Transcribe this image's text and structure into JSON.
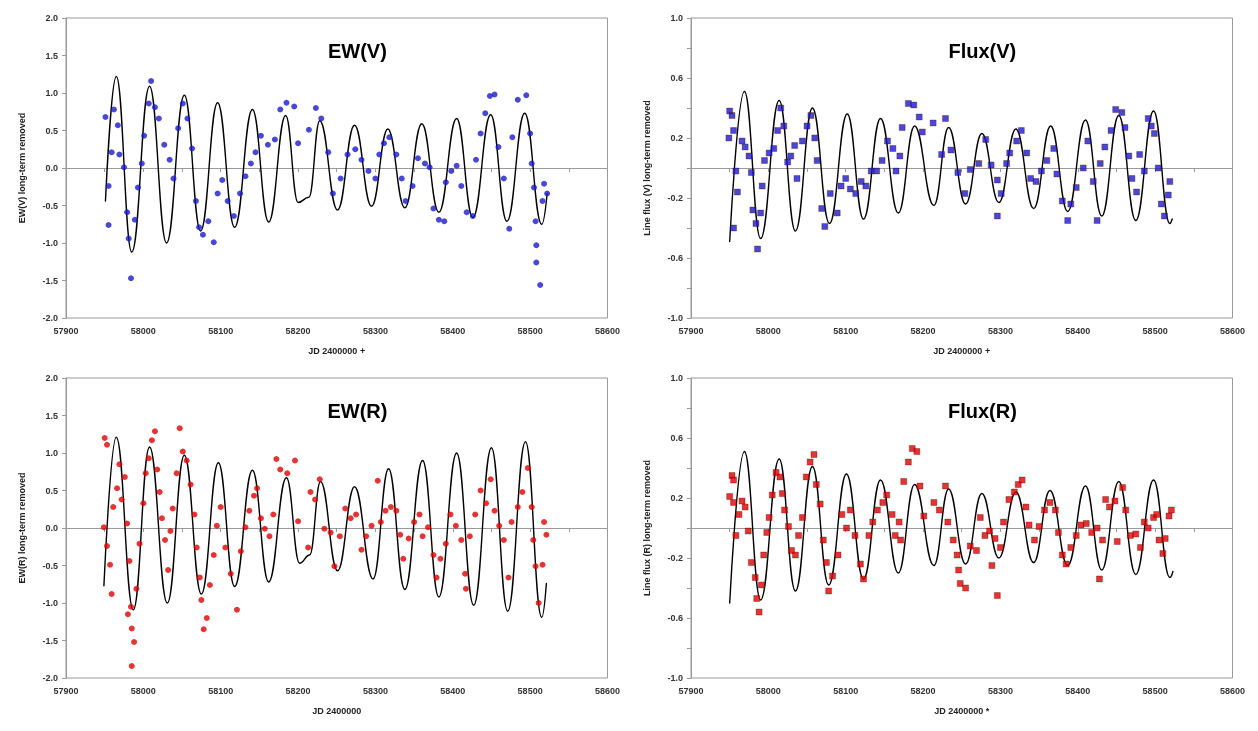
{
  "chart_data": [
    {
      "type": "scatter",
      "title": "EW(V)",
      "xlabel": "JD 2400000 +",
      "ylabel": "EW(V) long-term removed",
      "xlim": [
        57900,
        58600
      ],
      "xticks": [
        57900,
        {
          "value": 57950,
          "label": null
        },
        58000,
        {
          "value": 58050,
          "label": null
        },
        58100,
        {
          "value": 58150,
          "label": null
        },
        58200,
        {
          "value": 58250,
          "label": null
        },
        58300,
        {
          "value": 58350,
          "label": null
        },
        58400,
        {
          "value": 58450,
          "label": null
        },
        58500,
        {
          "value": 58550,
          "label": null
        },
        58600
      ],
      "ylim": [
        -2,
        2
      ],
      "yticks": [
        {
          "value": -2,
          "label": "-2.0"
        },
        -1.5,
        {
          "value": -1,
          "label": "-1.0"
        },
        -0.5,
        {
          "value": 0,
          "label": "0.0"
        },
        0.5,
        {
          "value": 1,
          "label": "1.0"
        },
        1.5,
        {
          "value": 2,
          "label": "2.0"
        }
      ],
      "series": [
        {
          "type": "line",
          "color": "#000000",
          "x": [
            57951,
            57965,
            57985,
            58008,
            58030,
            58053,
            58074,
            58096,
            58118,
            58141,
            58162,
            58184,
            58200,
            58214,
            58228,
            58251,
            58273,
            58295,
            58316,
            58338,
            58360,
            58382,
            58405,
            58426,
            58449,
            58470,
            58493,
            58515,
            58522
          ],
          "values": [
            -0.44,
            1.22,
            -1.12,
            1.09,
            -1.0,
            0.97,
            -0.84,
            0.87,
            -0.79,
            0.78,
            -0.72,
            0.7,
            -0.46,
            -0.39,
            0.63,
            -0.56,
            0.57,
            -0.51,
            0.52,
            -0.53,
            0.59,
            -0.59,
            0.66,
            -0.66,
            0.71,
            -0.71,
            0.73,
            -0.75,
            -0.34
          ]
        },
        {
          "type": "scatter",
          "color": "#1a1acc",
          "marker": "circle",
          "x": [
            57951,
            57955,
            57955,
            57959,
            57962,
            57967,
            57969,
            57975,
            57979,
            57981,
            57984,
            57989,
            57993,
            57998,
            58001,
            58007,
            58010,
            58015,
            58020,
            58027,
            58034,
            58039,
            58045,
            58051,
            58057,
            58063,
            58068,
            58072,
            58077,
            58084,
            58091,
            58096,
            58102,
            58109,
            58117,
            58125,
            58132,
            58139,
            58145,
            58152,
            58161,
            58170,
            58177,
            58185,
            58195,
            58200,
            58214,
            58223,
            58230,
            58239,
            58245,
            58255,
            58264,
            58274,
            58282,
            58291,
            58300,
            58305,
            58311,
            58318,
            58327,
            58334,
            58339,
            58348,
            58355,
            58364,
            58370,
            58375,
            58382,
            58389,
            58391,
            58398,
            58405,
            58411,
            58418,
            58426,
            58430,
            58436,
            58442,
            58448,
            58454,
            58459,
            58466,
            58473,
            58477,
            58484,
            58495,
            58500,
            58502,
            58505,
            58507,
            58508,
            58508,
            58513,
            58516,
            58518,
            58522
          ],
          "values": [
            0.68,
            -0.24,
            -0.76,
            0.21,
            0.78,
            0.57,
            0.18,
            0.01,
            -0.59,
            -0.94,
            -1.47,
            -0.69,
            -0.26,
            0.06,
            0.43,
            0.86,
            1.16,
            0.81,
            0.66,
            0.31,
            0.11,
            -0.14,
            0.53,
            0.86,
            0.66,
            0.26,
            -0.44,
            -0.79,
            -0.89,
            -0.71,
            -0.99,
            -0.34,
            -0.16,
            -0.44,
            -0.64,
            -0.34,
            -0.11,
            0.06,
            0.21,
            0.43,
            0.31,
            0.38,
            0.78,
            0.87,
            0.82,
            0.33,
            0.51,
            0.8,
            0.66,
            0.21,
            -0.34,
            -0.14,
            0.18,
            0.25,
            0.11,
            -0.04,
            -0.14,
            0.18,
            0.33,
            0.41,
            0.18,
            -0.14,
            -0.44,
            -0.24,
            0.13,
            0.06,
            0.01,
            -0.54,
            -0.69,
            -0.71,
            -0.19,
            -0.04,
            0.03,
            -0.24,
            -0.59,
            -0.64,
            0.11,
            0.46,
            0.73,
            0.96,
            0.98,
            0.28,
            -0.14,
            -0.81,
            0.41,
            0.91,
            0.97,
            0.46,
            0.06,
            -0.26,
            -0.71,
            -1.03,
            -1.26,
            -1.56,
            -0.44,
            -0.21,
            -0.34
          ]
        }
      ]
    },
    {
      "type": "scatter",
      "title": "Flux(V)",
      "xlabel": "JD 2400000 +",
      "ylabel": "Line flux (V) long-term removed",
      "xlim": [
        57900,
        58600
      ],
      "xticks": [
        57900,
        {
          "value": 57950,
          "label": null
        },
        58000,
        {
          "value": 58050,
          "label": null
        },
        58100,
        {
          "value": 58150,
          "label": null
        },
        58200,
        {
          "value": 58250,
          "label": null
        },
        58300,
        {
          "value": 58350,
          "label": null
        },
        58400,
        {
          "value": 58450,
          "label": null
        },
        58500,
        {
          "value": 58550,
          "label": null
        },
        58600
      ],
      "ylim": [
        -1,
        1
      ],
      "yticks": [
        {
          "value": -1,
          "label": "-1.0"
        },
        {
          "value": -0.8,
          "label": null
        },
        -0.6,
        {
          "value": -0.4,
          "label": null
        },
        -0.2,
        {
          "value": 0,
          "label": null
        },
        0.2,
        {
          "value": 0.4,
          "label": null
        },
        0.6,
        {
          "value": 0.8,
          "label": null
        },
        {
          "value": 1,
          "label": "1.0"
        }
      ],
      "series": [
        {
          "type": "line",
          "color": "#000000",
          "x": [
            57950,
            57969,
            57990,
            58014,
            58035,
            58057,
            58079,
            58102,
            58123,
            58145,
            58168,
            58189,
            58214,
            58233,
            58255,
            58276,
            58298,
            58320,
            58343,
            58365,
            58387,
            58410,
            58431,
            58453,
            58475,
            58498,
            58519,
            58522
          ],
          "values": [
            -0.49,
            0.51,
            -0.47,
            0.45,
            -0.42,
            0.4,
            -0.37,
            0.36,
            -0.34,
            0.33,
            -0.3,
            0.28,
            -0.25,
            0.27,
            -0.24,
            0.23,
            -0.23,
            0.26,
            -0.27,
            0.28,
            -0.29,
            0.32,
            -0.32,
            0.35,
            -0.35,
            0.38,
            -0.37,
            -0.34
          ]
        },
        {
          "type": "scatter",
          "color": "#1a1acc",
          "marker": "square",
          "x": [
            57950,
            57953,
            57949,
            57955,
            57958,
            57955,
            57960,
            57966,
            57970,
            57975,
            57978,
            57980,
            57984,
            57986,
            57990,
            57992,
            57995,
            58001,
            58007,
            58012,
            58016,
            58020,
            58025,
            58029,
            58034,
            58037,
            58044,
            58050,
            58055,
            58060,
            58063,
            58069,
            58073,
            58080,
            58089,
            58094,
            58100,
            58106,
            58113,
            58120,
            58126,
            58133,
            58140,
            58147,
            58154,
            58161,
            58165,
            58170,
            58173,
            58181,
            58188,
            58195,
            58199,
            58213,
            58224,
            58229,
            58236,
            58245,
            58254,
            58261,
            58272,
            58281,
            58288,
            58296,
            58296,
            58301,
            58308,
            58312,
            58321,
            58327,
            58334,
            58339,
            58346,
            58353,
            58360,
            58369,
            58373,
            58380,
            58387,
            58391,
            58398,
            58407,
            58413,
            58420,
            58425,
            58429,
            58435,
            58443,
            58449,
            58457,
            58461,
            58466,
            58470,
            58476,
            58480,
            58486,
            58491,
            58495,
            58499,
            58504,
            58508,
            58512,
            58517,
            58519
          ],
          "values": [
            0.38,
            0.35,
            0.2,
            0.25,
            -0.02,
            -0.4,
            -0.16,
            0.18,
            0.14,
            0.08,
            -0.03,
            -0.28,
            -0.37,
            -0.54,
            -0.3,
            -0.12,
            0.05,
            0.1,
            0.13,
            0.25,
            0.4,
            0.28,
            0.04,
            0.08,
            0.15,
            -0.07,
            0.18,
            0.28,
            0.35,
            0.2,
            0.05,
            -0.27,
            -0.39,
            -0.17,
            -0.3,
            -0.12,
            -0.07,
            -0.14,
            -0.17,
            -0.09,
            -0.12,
            -0.02,
            -0.02,
            0.05,
            0.18,
            0.13,
            -0.02,
            0.08,
            0.27,
            0.43,
            0.42,
            0.34,
            0.24,
            0.3,
            0.09,
            0.33,
            0.12,
            -0.03,
            -0.17,
            -0.01,
            0.03,
            0.19,
            0.02,
            -0.08,
            -0.32,
            -0.17,
            0.03,
            0.1,
            0.18,
            0.25,
            0.1,
            -0.07,
            -0.09,
            -0.02,
            0.05,
            0.13,
            -0.04,
            -0.22,
            -0.35,
            -0.24,
            -0.13,
            0.0,
            0.18,
            -0.09,
            -0.35,
            0.03,
            0.14,
            0.25,
            0.39,
            0.37,
            0.27,
            0.08,
            -0.07,
            -0.16,
            0.09,
            -0.02,
            0.33,
            0.28,
            0.23,
            0.0,
            -0.24,
            -0.32,
            -0.18,
            -0.09
          ]
        }
      ]
    },
    {
      "type": "scatter",
      "title": "EW(R)",
      "xlabel": "JD 2400000",
      "ylabel": "EW(R) long-term removed",
      "xlim": [
        57900,
        58600
      ],
      "xticks": [
        57900,
        {
          "value": 57950,
          "label": null
        },
        58000,
        {
          "value": 58050,
          "label": null
        },
        58100,
        {
          "value": 58150,
          "label": null
        },
        58200,
        {
          "value": 58250,
          "label": null
        },
        58300,
        {
          "value": 58350,
          "label": null
        },
        58400,
        {
          "value": 58450,
          "label": null
        },
        58500,
        {
          "value": 58550,
          "label": null
        },
        58600
      ],
      "ylim": [
        -2,
        2
      ],
      "yticks": [
        {
          "value": -2,
          "label": "-2.0"
        },
        -1.5,
        {
          "value": -1,
          "label": "-1.0"
        },
        -0.5,
        {
          "value": 0,
          "label": "0.0"
        },
        0.5,
        {
          "value": 1,
          "label": "1.0"
        },
        1.5,
        {
          "value": 2,
          "label": "2.0"
        }
      ],
      "series": [
        {
          "type": "line",
          "color": "#000000",
          "x": [
            57949,
            57965,
            57987,
            58008,
            58031,
            58053,
            58075,
            58097,
            58118,
            58141,
            58162,
            58185,
            58202,
            58215,
            58229,
            58251,
            58273,
            58297,
            58317,
            58338,
            58361,
            58382,
            58405,
            58427,
            58450,
            58471,
            58494,
            58515,
            58521
          ],
          "values": [
            -0.77,
            1.21,
            -1.09,
            1.08,
            -1.0,
            0.97,
            -0.88,
            0.87,
            -0.78,
            0.77,
            -0.72,
            0.67,
            -0.47,
            -0.36,
            0.62,
            -0.57,
            0.55,
            -0.68,
            0.79,
            -0.82,
            0.9,
            -0.92,
            1.0,
            -1.03,
            1.07,
            -1.11,
            1.15,
            -1.19,
            -0.74
          ]
        },
        {
          "type": "scatter",
          "color": "#e00000",
          "marker": "circle",
          "x": [
            57950,
            57953,
            57949,
            57953,
            57957,
            57959,
            57961,
            57966,
            57969,
            57972,
            57976,
            57979,
            57982,
            57980,
            57984,
            57985,
            57988,
            57985,
            57991,
            57995,
            58000,
            58003,
            58007,
            58011,
            58015,
            58018,
            58021,
            58024,
            58028,
            58032,
            58035,
            58038,
            58043,
            58047,
            58051,
            58056,
            58061,
            58066,
            58069,
            58073,
            58075,
            58078,
            58082,
            58086,
            58091,
            58095,
            58100,
            58106,
            58113,
            58121,
            58126,
            58132,
            58137,
            58143,
            58147,
            58152,
            58157,
            58163,
            58168,
            58172,
            58177,
            58186,
            58196,
            58200,
            58213,
            58216,
            58222,
            58228,
            58234,
            58242,
            58247,
            58254,
            58261,
            58268,
            58275,
            58282,
            58288,
            58295,
            58303,
            58307,
            58313,
            58320,
            58327,
            58332,
            58336,
            58343,
            58350,
            58357,
            58361,
            58368,
            58375,
            58379,
            58384,
            58391,
            58397,
            58404,
            58411,
            58416,
            58417,
            58422,
            58429,
            58436,
            58443,
            58449,
            58454,
            58460,
            58466,
            58472,
            58476,
            58484,
            58490,
            58497,
            58502,
            58504,
            58507,
            58511,
            58516,
            58518,
            58521
          ],
          "values": [
            1.2,
            1.11,
            0.01,
            -0.24,
            -0.49,
            -0.88,
            0.28,
            0.53,
            0.85,
            0.38,
            0.68,
            0.06,
            -0.44,
            -1.15,
            -1.05,
            -1.34,
            -1.52,
            -1.84,
            -0.81,
            -0.21,
            0.33,
            0.73,
            0.93,
            1.17,
            1.29,
            0.78,
            0.48,
            0.13,
            -0.16,
            -0.56,
            -0.04,
            0.26,
            0.73,
            1.33,
            1.02,
            0.9,
            0.58,
            0.18,
            -0.26,
            -0.66,
            -0.96,
            -1.35,
            -1.2,
            -0.76,
            -0.36,
            0.03,
            0.28,
            -0.26,
            -0.61,
            -1.09,
            -0.31,
            0.01,
            0.23,
            0.43,
            0.53,
            0.13,
            -0.01,
            -0.11,
            0.18,
            0.92,
            0.78,
            0.73,
            0.9,
            0.09,
            -0.26,
            0.48,
            0.38,
            0.65,
            -0.01,
            -0.06,
            -0.51,
            -0.11,
            0.26,
            0.13,
            0.18,
            -0.29,
            -0.11,
            0.03,
            0.63,
            0.08,
            0.23,
            0.28,
            0.23,
            -0.09,
            -0.41,
            -0.14,
            0.08,
            0.18,
            -0.11,
            0.01,
            -0.36,
            -0.66,
            -0.41,
            -0.21,
            0.18,
            0.03,
            -0.16,
            -0.61,
            -0.81,
            -0.11,
            0.18,
            0.5,
            0.33,
            0.65,
            0.23,
            0.03,
            -0.16,
            -0.66,
            0.08,
            0.28,
            0.48,
            0.8,
            0.28,
            -0.16,
            -0.51,
            -1.0,
            -0.49,
            0.08,
            -0.09
          ]
        }
      ]
    },
    {
      "type": "scatter",
      "title": "Flux(R)",
      "xlabel": "JD 2400000 *",
      "ylabel": "Line flux (R) long-term removed",
      "xlim": [
        57900,
        58600
      ],
      "xticks": [
        57900,
        {
          "value": 57950,
          "label": null
        },
        58000,
        {
          "value": 58050,
          "label": null
        },
        58100,
        {
          "value": 58150,
          "label": null
        },
        58200,
        {
          "value": 58250,
          "label": null
        },
        58300,
        {
          "value": 58350,
          "label": null
        },
        58400,
        {
          "value": 58450,
          "label": null
        },
        58500,
        {
          "value": 58550,
          "label": null
        },
        58600
      ],
      "ylim": [
        -1,
        1
      ],
      "yticks": [
        {
          "value": -1,
          "label": "-1.0"
        },
        {
          "value": -0.8,
          "label": null
        },
        -0.6,
        {
          "value": -0.4,
          "label": null
        },
        -0.2,
        {
          "value": 0,
          "label": null
        },
        0.2,
        {
          "value": 0.4,
          "label": null
        },
        0.6,
        {
          "value": 0.8,
          "label": null
        },
        {
          "value": 1,
          "label": "1.0"
        }
      ],
      "series": [
        {
          "type": "line",
          "color": "#000000",
          "x": [
            57950,
            57969,
            57990,
            58014,
            58035,
            58057,
            58078,
            58101,
            58123,
            58145,
            58168,
            58189,
            58214,
            58233,
            58255,
            58276,
            58298,
            58320,
            58343,
            58364,
            58387,
            58410,
            58431,
            58453,
            58475,
            58498,
            58519,
            58523
          ],
          "values": [
            -0.5,
            0.51,
            -0.48,
            0.46,
            -0.42,
            0.41,
            -0.38,
            0.36,
            -0.34,
            0.32,
            -0.3,
            0.29,
            -0.25,
            0.26,
            -0.24,
            0.23,
            -0.2,
            0.24,
            -0.23,
            0.25,
            -0.25,
            0.28,
            -0.28,
            0.31,
            -0.31,
            0.32,
            -0.33,
            -0.29
          ]
        },
        {
          "type": "scatter",
          "color": "#dd0000",
          "marker": "square",
          "x": [
            57950,
            57953,
            57955,
            57955,
            57958,
            57962,
            57966,
            57970,
            57974,
            57978,
            57983,
            57985,
            57988,
            57991,
            57994,
            57998,
            58001,
            58005,
            58010,
            58015,
            58018,
            58021,
            58026,
            58030,
            58035,
            58039,
            58044,
            58049,
            58054,
            58059,
            58062,
            58067,
            58071,
            58075,
            58078,
            58083,
            58090,
            58095,
            58101,
            58106,
            58112,
            58119,
            58123,
            58130,
            58135,
            58141,
            58148,
            58153,
            58160,
            58164,
            58169,
            58171,
            58175,
            58181,
            58186,
            58192,
            58196,
            58201,
            58214,
            58221,
            58229,
            58232,
            58239,
            58244,
            58246,
            58248,
            58255,
            58261,
            58269,
            58274,
            58280,
            58286,
            58289,
            58293,
            58296,
            58300,
            58304,
            58311,
            58318,
            58323,
            58328,
            58333,
            58337,
            58344,
            58350,
            58357,
            58364,
            58371,
            58375,
            58380,
            58385,
            58391,
            58398,
            58404,
            58411,
            58418,
            58425,
            58428,
            58432,
            58436,
            58441,
            58448,
            58451,
            58458,
            58462,
            58468,
            58475,
            58481,
            58486,
            58491,
            58498,
            58502,
            58505,
            58510,
            58513,
            58518,
            58521
          ],
          "values": [
            0.21,
            0.35,
            0.32,
            0.17,
            -0.05,
            0.09,
            0.18,
            0.14,
            -0.02,
            -0.23,
            -0.33,
            -0.47,
            -0.56,
            -0.38,
            -0.18,
            -0.03,
            0.07,
            0.22,
            0.37,
            0.34,
            0.23,
            0.12,
            0.01,
            -0.15,
            -0.18,
            -0.05,
            0.07,
            0.34,
            0.44,
            0.49,
            0.29,
            0.16,
            -0.08,
            -0.23,
            -0.42,
            -0.32,
            -0.18,
            0.09,
            0.0,
            0.12,
            -0.05,
            -0.24,
            -0.34,
            -0.05,
            0.04,
            0.12,
            0.17,
            0.22,
            0.09,
            -0.05,
            0.04,
            -0.08,
            0.31,
            0.44,
            0.53,
            0.51,
            0.28,
            0.08,
            0.17,
            0.12,
            0.28,
            0.04,
            -0.08,
            -0.18,
            -0.28,
            -0.37,
            -0.4,
            -0.12,
            -0.15,
            0.07,
            -0.05,
            -0.02,
            -0.25,
            -0.07,
            -0.45,
            -0.13,
            0.04,
            0.19,
            0.24,
            0.29,
            0.32,
            0.14,
            0.02,
            -0.08,
            0.01,
            0.12,
            0.17,
            0.12,
            -0.03,
            -0.18,
            -0.24,
            -0.13,
            -0.05,
            0.02,
            0.03,
            -0.03,
            0.0,
            -0.34,
            -0.08,
            0.19,
            0.14,
            0.18,
            -0.09,
            0.27,
            0.12,
            -0.05,
            -0.04,
            -0.13,
            0.04,
            0.0,
            0.07,
            0.09,
            -0.08,
            -0.17,
            -0.07,
            0.08,
            0.12
          ]
        }
      ]
    }
  ]
}
